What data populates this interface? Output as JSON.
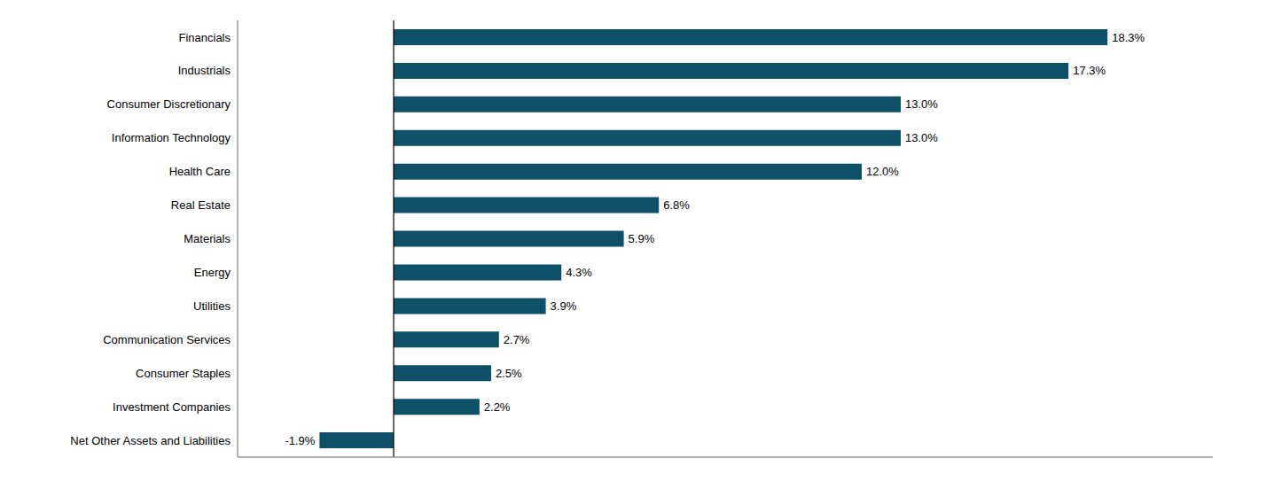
{
  "chart_data": {
    "type": "bar",
    "orientation": "horizontal",
    "categories": [
      "Financials",
      "Industrials",
      "Consumer Discretionary",
      "Information Technology",
      "Health Care",
      "Real Estate",
      "Materials",
      "Energy",
      "Utilities",
      "Communication Services",
      "Consumer Staples",
      "Investment Companies",
      "Net Other Assets and Liabilities"
    ],
    "values": [
      18.3,
      17.3,
      13.0,
      13.0,
      12.0,
      6.8,
      5.9,
      4.3,
      3.9,
      2.7,
      2.5,
      2.2,
      -1.9
    ],
    "value_labels": [
      "18.3%",
      "17.3%",
      "13.0%",
      "13.0%",
      "12.0%",
      "6.8%",
      "5.9%",
      "4.3%",
      "3.9%",
      "2.7%",
      "2.5%",
      "2.2%",
      "-1.9%"
    ],
    "data_labels": true,
    "color": "#0d5068",
    "xlim": [
      -4,
      21
    ],
    "grid": false,
    "tick_labels": "y"
  }
}
